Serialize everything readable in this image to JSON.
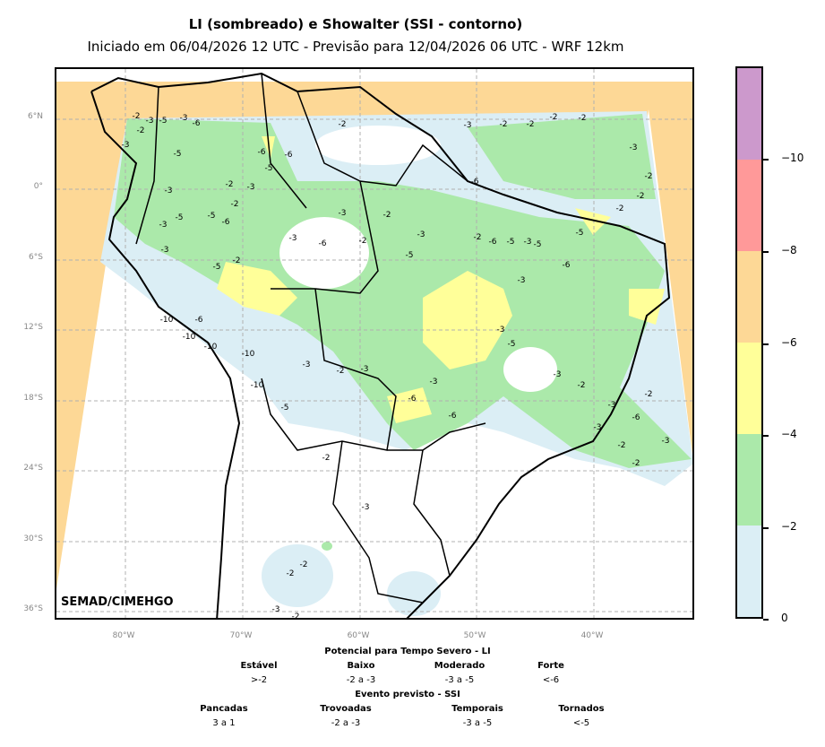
{
  "title": "LI (sombreado) e Showalter (SSI - contorno)",
  "subtitle": "Iniciado em 06/04/2026 12 UTC - Previsão para 12/04/2026 06 UTC - WRF 12km",
  "watermark": "SEMAD/CIMEHGO",
  "lat_labels": [
    "6°N",
    "0°",
    "6°S",
    "12°S",
    "18°S",
    "24°S",
    "30°S",
    "36°S"
  ],
  "lon_labels": [
    "80°W",
    "70°W",
    "60°W",
    "50°W",
    "40°W"
  ],
  "colorbar": {
    "ticks": [
      "−10",
      "−8",
      "−6",
      "−4",
      "−2",
      "0"
    ],
    "colors": [
      "#cc99cc",
      "#ff9999",
      "#fdd896",
      "#ffff99",
      "#abe9aa",
      "#dbeef5"
    ]
  },
  "colors": {
    "domain_edge": "#fdd896",
    "green": "#abe9aa",
    "yellow": "#ffff99",
    "lightblue": "#dbeef5",
    "grid": "#b0b0b0"
  },
  "legend": {
    "li_title": "Potencial para Tempo Severo - LI",
    "li": [
      {
        "label": "Estável",
        "range": ">-2"
      },
      {
        "label": "Baixo",
        "range": "-2 a -3"
      },
      {
        "label": "Moderado",
        "range": "-3 a -5"
      },
      {
        "label": "Forte",
        "range": "<-6"
      }
    ],
    "ssi_title": "Evento previsto - SSI",
    "ssi": [
      {
        "label": "Pancadas",
        "range": "3 a 1"
      },
      {
        "label": "Trovoadas",
        "range": "-2 a -3"
      },
      {
        "label": "Temporais",
        "range": "-3 a -5"
      },
      {
        "label": "Tornados",
        "range": "<-5"
      }
    ]
  },
  "contour_labels": [
    "-2",
    "-3",
    "-5",
    "-3",
    "-6",
    "-3",
    "-2",
    "-2",
    "-3",
    "-2",
    "-2",
    "-2",
    "-2",
    "-6",
    "-5",
    "-6",
    "-3",
    "-5",
    "-3",
    "-2",
    "-2",
    "-5",
    "-6",
    "-5",
    "-3",
    "-3",
    "-2",
    "-6",
    "-3",
    "-2",
    "-2",
    "-2",
    "-5",
    "-6",
    "-5",
    "-3",
    "-5",
    "-6",
    "-3",
    "-2",
    "-5",
    "-3",
    "-2",
    "-6",
    "-3",
    "-2",
    "-3",
    "-5",
    "-10",
    "-6",
    "-10",
    "-10",
    "-10",
    "-5",
    "-10",
    "-3",
    "-2",
    "-3",
    "-6",
    "-3",
    "-6",
    "-3",
    "-5",
    "-3",
    "-2",
    "-3",
    "-6",
    "-2",
    "-3",
    "-2",
    "-3",
    "-2",
    "-2",
    "-3",
    "-2",
    "-2",
    "-3",
    "-2"
  ]
}
